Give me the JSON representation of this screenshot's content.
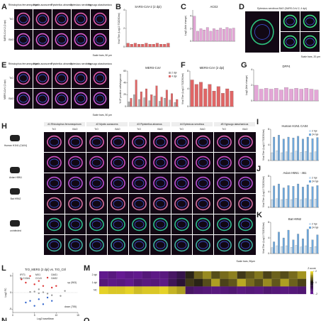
{
  "letters": [
    "A",
    "B",
    "C",
    "D",
    "E",
    "F",
    "G",
    "H",
    "I",
    "J",
    "K",
    "L",
    "M",
    "N",
    "O"
  ],
  "species": [
    "Rhinolophus ferrumequinum",
    "Myotis aurascens",
    "Pipistrellus abramus",
    "Eptesicus serotinus",
    "Hypsugo alaschanicus"
  ],
  "panel_a": {
    "rows": [
      "SARS-CoV-2 (2 dpi)"
    ],
    "sub": [
      "TrO",
      "BAO"
    ],
    "scale": "Scale bars, 50 µm"
  },
  "panel_d": {
    "title": "Eptesicus serotinus BAO (SARS-CoV-2, 4 dpi)",
    "scale": "Scale bars, 20 µm"
  },
  "panel_e": {
    "rows": [
      "MERS-CoV (2 dpi)"
    ],
    "sub": [
      "TrO",
      "BAO"
    ],
    "scale": "Scale bars, 50 µm"
  },
  "panel_h": {
    "headers": [
      "#1 Rhinolophus ferrumequinum",
      "#2 Myotis aurascens",
      "#3 Pipistrellus abramus",
      "#4 Eptesicus serotinus",
      "#5 Hypsugo alaschanicus"
    ],
    "sub": [
      "TrO",
      "BAO"
    ],
    "rows": [
      "Human H1N1 (CA04)",
      "Avian H5N1",
      "Bat H9N2",
      "uninfected"
    ],
    "scale": "Scale bars, 50µm"
  },
  "chart_data": [
    {
      "type": "bar",
      "title": "SARS-CoV-2 (2 dpi)",
      "y_label": "Viral Titer (Log10 TCID50/ml)",
      "color": "#e06666",
      "values": [
        0.4,
        0.3,
        0.4,
        0.3,
        0.3,
        0.4,
        0.3,
        0.3,
        0.4,
        0.3,
        0.3,
        0.4
      ],
      "ylim": [
        0,
        4
      ],
      "yticks": [
        0,
        2,
        4
      ]
    },
    {
      "type": "bar",
      "title": "ACE2",
      "y_label": "Log2 (fold change)",
      "color": "#e3a6d6",
      "values": [
        4,
        1.6,
        2,
        1.8,
        2.2,
        1.6,
        2,
        1.8,
        2.1,
        1.9,
        2.2,
        2,
        2.1
      ],
      "ylim": [
        0,
        5
      ],
      "yticks": [
        0,
        2,
        4
      ]
    },
    {
      "type": "bar",
      "title": "MERS-CoV",
      "y_label": "% IP positive cells/organoid",
      "series": [
        {
          "name": "2 dpi",
          "color": "#b0b0b0",
          "values": [
            8,
            20,
            12,
            15,
            10,
            18,
            9,
            14,
            11,
            7
          ]
        },
        {
          "name": "4 dpi",
          "color": "#e06666",
          "values": [
            14,
            45,
            25,
            30,
            20,
            35,
            16,
            28,
            22,
            12
          ]
        }
      ],
      "ylim": [
        0,
        60
      ],
      "yticks": [
        0,
        20,
        40,
        60
      ]
    },
    {
      "type": "bar",
      "title": "MERS-CoV (2 dpi)",
      "y_label": "Viral Titer (Log10 TCID50/ml)",
      "color": "#e06666",
      "values": [
        6,
        5,
        5.5,
        4,
        5,
        3.5,
        4.5,
        3,
        4,
        3.5
      ],
      "ylim": [
        0,
        8
      ],
      "yticks": [
        0,
        4,
        8
      ]
    },
    {
      "type": "bar",
      "title": "DPP4",
      "y_label": "Log2 (fold change)",
      "color": "#e3a6d6",
      "values": [
        2,
        1.5,
        1.6,
        1.5,
        1.6,
        1.4,
        1.7,
        1.5,
        1.6,
        1.5,
        1.6,
        1.5,
        1.4
      ],
      "ylim": [
        0,
        4
      ],
      "yticks": [
        0,
        2,
        4
      ]
    },
    {
      "type": "bar",
      "title": "Human H1N1 CA04",
      "y_label": "Viral Titer (Log10 TCID50/ml)",
      "series": [
        {
          "name": "2 hpi",
          "color": "#cfe2f3",
          "values": [
            2,
            2.5,
            2,
            2.2,
            2,
            2.4,
            2.1,
            2.3,
            2,
            2.2
          ]
        },
        {
          "name": "24 hpi",
          "color": "#6fa8dc",
          "values": [
            6,
            6.5,
            5.5,
            6,
            5.8,
            6.2,
            5.5,
            6,
            5.6,
            5.9
          ]
        }
      ],
      "ylim": [
        0,
        8
      ],
      "yticks": [
        0,
        4,
        8
      ]
    },
    {
      "type": "bar",
      "title": "Avian H5N1 - 461",
      "y_label": "Viral Titer (Log10 TCID50/ml)",
      "series": [
        {
          "name": "2 hpi",
          "color": "#cfe2f3",
          "values": [
            2,
            2.2,
            2,
            2.1,
            2,
            2.3,
            2,
            2.2,
            2,
            2.1
          ]
        },
        {
          "name": "24 hpi",
          "color": "#6fa8dc",
          "values": [
            5.5,
            6,
            5,
            5.6,
            5.4,
            6,
            5.2,
            5.8,
            5.3,
            5.6
          ]
        }
      ],
      "ylim": [
        0,
        8
      ],
      "yticks": [
        0,
        4,
        8
      ]
    },
    {
      "type": "bar",
      "title": "Bat H9N2",
      "y_label": "Viral Titer (Log10 TCID50/ml)",
      "series": [
        {
          "name": "2 hpi",
          "color": "#cfe2f3",
          "values": [
            1.5,
            2,
            1.8,
            2,
            1.6,
            2.1,
            1.7,
            2,
            1.6,
            1.8
          ]
        },
        {
          "name": "24 hpi",
          "color": "#6fa8dc",
          "values": [
            3,
            5.5,
            4,
            6,
            3.5,
            5,
            3.8,
            6.2,
            3.5,
            4.8
          ]
        }
      ],
      "ylim": [
        0,
        8
      ],
      "yticks": [
        0,
        4,
        8
      ]
    },
    {
      "type": "scatter",
      "title": "TrO_MERS (2 dpi) vs. TrO_Ctrl",
      "x_label": "Log2 baseMean",
      "y_label": "Log2 FC",
      "x": [
        2,
        3,
        4,
        5,
        6,
        7,
        8,
        9,
        10,
        3,
        4,
        5,
        6,
        7,
        8,
        9,
        11,
        5,
        6,
        7,
        8,
        4,
        6,
        9,
        12
      ],
      "values": [
        4,
        3,
        5,
        2.5,
        3.5,
        2,
        4.5,
        1.5,
        2,
        -3,
        -2.5,
        -4,
        -2,
        -3.5,
        -1.5,
        -2.5,
        -1,
        0.3,
        -0.2,
        0.1,
        -0.3,
        0.2,
        1,
        -0.8,
        0.5
      ],
      "xlim": [
        0,
        15
      ],
      "ylim": [
        -6,
        6
      ],
      "xticks": [
        0,
        5,
        10,
        15
      ],
      "yticks": [
        -5,
        0,
        5
      ],
      "annotations": [
        "IFIT1",
        "MX1",
        "OAS1",
        "SLC13A1",
        "CCL5",
        "OAS2"
      ],
      "counts": [
        "up (963)",
        "down (755)"
      ]
    },
    {
      "type": "heatmap",
      "title": "Z-score",
      "rows": [
        "2 dpi",
        "1 dpi",
        "NC"
      ],
      "zlim": [
        -2,
        2
      ],
      "zticks": [
        -2,
        0,
        2
      ],
      "values": [
        [
          -1.8,
          -1.6,
          -1.9,
          -1.7,
          -1.8,
          -1.5,
          -1.7,
          -1.6,
          -1.2,
          -0.8,
          0.2,
          0.8,
          1.2,
          0.6,
          0.9,
          1.1,
          0.4,
          0.7,
          1,
          0.5,
          0.8,
          0.6,
          0.9,
          1.3
        ],
        [
          -1.5,
          -1.7,
          -1.6,
          -1.8,
          -1.4,
          -1.6,
          -1.5,
          -1.7,
          -1,
          -0.5,
          0.4,
          0.2,
          0.6,
          1.4,
          0.5,
          0.7,
          1.5,
          0.9,
          0.6,
          1.2,
          0.7,
          1.4,
          0.8,
          0.5
        ],
        [
          1.9,
          1.8,
          1.8,
          1.9,
          1.7,
          1.8,
          1.8,
          1.9,
          1.6,
          1.4,
          -1.2,
          -1.4,
          -1.5,
          -1.6,
          -1.5,
          -1.4,
          -1.6,
          -1.5,
          -1.6,
          -1.4,
          -1.5,
          -1.6,
          -1.5,
          -1.4
        ]
      ]
    }
  ]
}
